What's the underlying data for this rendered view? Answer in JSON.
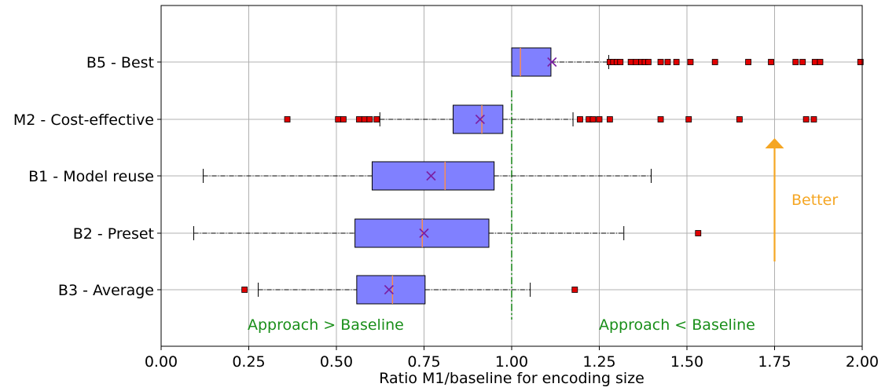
{
  "chart_data": {
    "type": "box",
    "xlabel": "Ratio M1/baseline for encoding size",
    "xlim": [
      0.0,
      2.0
    ],
    "xticks": [
      "0.00",
      "0.25",
      "0.50",
      "0.75",
      "1.00",
      "1.25",
      "1.50",
      "1.75",
      "2.00"
    ],
    "xtick_values": [
      0.0,
      0.25,
      0.5,
      0.75,
      1.0,
      1.25,
      1.5,
      1.75,
      2.0
    ],
    "grid": true,
    "reference_line": {
      "x": 1.0,
      "color": "#228b22",
      "style": "dash-dot"
    },
    "colors": {
      "box_fill": "#8080ff",
      "median": "#ff8c4a",
      "mean_marker": "#7b1fa2",
      "outlier": "#e00000",
      "annotation_left": "#1a8f1a",
      "annotation_right": "#1a8f1a",
      "better": "#f5a623"
    },
    "categories": [
      "B5 - Best",
      "M2 - Cost-effective",
      "B1 - Model reuse",
      "B2 - Preset",
      "B3 - Average"
    ],
    "boxes": [
      {
        "label": "B5 - Best",
        "whisker_low": 1.0,
        "q1": 1.0,
        "median": 1.025,
        "q3": 1.112,
        "whisker_high": 1.277,
        "mean": 1.115,
        "outliers": [
          1.28,
          1.29,
          1.3,
          1.31,
          1.34,
          1.355,
          1.37,
          1.38,
          1.39,
          1.425,
          1.445,
          1.47,
          1.51,
          1.58,
          1.675,
          1.74,
          1.81,
          1.83,
          1.865,
          1.88,
          1.995
        ]
      },
      {
        "label": "M2 - Cost-effective",
        "whisker_low": 0.624,
        "q1": 0.833,
        "median": 0.915,
        "q3": 0.975,
        "whisker_high": 1.175,
        "mean": 0.91,
        "outliers": [
          0.36,
          0.505,
          0.52,
          0.565,
          0.58,
          0.595,
          0.615,
          1.195,
          1.22,
          1.232,
          1.25,
          1.28,
          1.425,
          1.505,
          1.65,
          1.84,
          1.862
        ]
      },
      {
        "label": "B1 - Model reuse",
        "whisker_low": 0.12,
        "q1": 0.602,
        "median": 0.81,
        "q3": 0.95,
        "whisker_high": 1.398,
        "mean": 0.77,
        "outliers": []
      },
      {
        "label": "B2 - Preset",
        "whisker_low": 0.093,
        "q1": 0.553,
        "median": 0.745,
        "q3": 0.935,
        "whisker_high": 1.32,
        "mean": 0.75,
        "outliers": [
          1.532
        ]
      },
      {
        "label": "B3 - Average",
        "whisker_low": 0.277,
        "q1": 0.558,
        "median": 0.66,
        "q3": 0.753,
        "whisker_high": 1.053,
        "mean": 0.65,
        "outliers": [
          0.238,
          1.18
        ]
      }
    ],
    "annotations": {
      "left": "Approach > Baseline",
      "right": "Approach < Baseline",
      "better": "Better"
    }
  }
}
